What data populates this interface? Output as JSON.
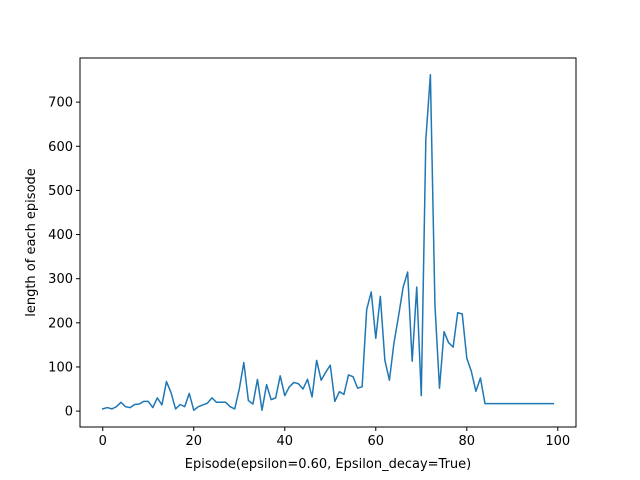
{
  "chart_data": {
    "type": "line",
    "title": "",
    "xlabel": "Episode(epsilon=0.60, Epsilon_decay=True)",
    "ylabel": "length of each episode",
    "xlim": [
      -5,
      104
    ],
    "ylim": [
      -36,
      800
    ],
    "xticks": [
      0,
      20,
      40,
      60,
      80,
      100
    ],
    "yticks": [
      0,
      100,
      200,
      300,
      400,
      500,
      600,
      700
    ],
    "grid": false,
    "legend": "none",
    "series": [
      {
        "color": "#1f77b4",
        "x": [
          0,
          1,
          2,
          3,
          4,
          5,
          6,
          7,
          8,
          9,
          10,
          11,
          12,
          13,
          14,
          15,
          16,
          17,
          18,
          19,
          20,
          21,
          22,
          23,
          24,
          25,
          26,
          27,
          28,
          29,
          30,
          31,
          32,
          33,
          34,
          35,
          36,
          37,
          38,
          39,
          40,
          41,
          42,
          43,
          44,
          45,
          46,
          47,
          48,
          49,
          50,
          51,
          52,
          53,
          54,
          55,
          56,
          57,
          58,
          59,
          60,
          61,
          62,
          63,
          64,
          65,
          66,
          67,
          68,
          69,
          70,
          71,
          72,
          73,
          74,
          75,
          76,
          77,
          78,
          79,
          80,
          81,
          82,
          83,
          84,
          85,
          86,
          87,
          88,
          89,
          90,
          91,
          92,
          93,
          94,
          95,
          96,
          97,
          98,
          99
        ],
        "y": [
          5,
          8,
          5,
          10,
          20,
          10,
          8,
          15,
          16,
          22,
          22,
          8,
          30,
          14,
          67,
          42,
          5,
          15,
          10,
          40,
          2,
          10,
          14,
          18,
          30,
          20,
          20,
          20,
          10,
          5,
          50,
          110,
          24,
          16,
          72,
          2,
          60,
          26,
          30,
          80,
          35,
          55,
          65,
          62,
          50,
          72,
          32,
          115,
          70,
          88,
          104,
          22,
          44,
          38,
          82,
          78,
          52,
          55,
          230,
          270,
          165,
          260,
          115,
          70,
          155,
          215,
          280,
          315,
          113,
          281,
          35,
          615,
          762,
          240,
          52,
          180,
          155,
          145,
          223,
          220,
          120,
          90,
          45,
          75,
          17,
          17,
          17,
          17,
          17,
          17,
          17,
          17,
          17,
          17,
          17,
          17,
          17,
          17,
          17,
          17
        ]
      }
    ]
  }
}
